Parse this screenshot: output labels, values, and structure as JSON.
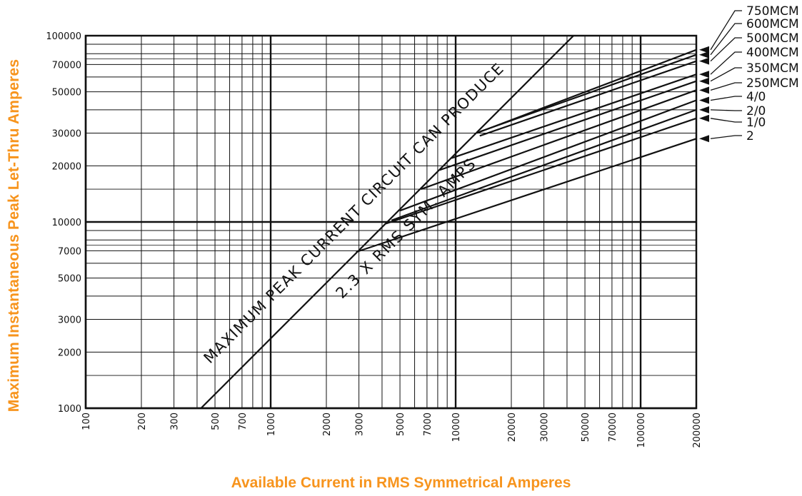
{
  "chart_data": {
    "type": "line",
    "xscale": "log",
    "yscale": "log",
    "xlim": [
      100,
      200000
    ],
    "ylim": [
      1000,
      100000
    ],
    "grid": true,
    "xlabel": "Available Current in RMS Symmetrical Amperes",
    "ylabel": "Maximum Instantaneous Peak Let-Thru Amperes",
    "x_ticks": [
      "100",
      "200",
      "300",
      "500",
      "700",
      "1000",
      "2000",
      "3000",
      "5000",
      "7000",
      "10000",
      "20000",
      "30000",
      "50000",
      "70000",
      "100000",
      "200000"
    ],
    "y_ticks": [
      "1000",
      "2000",
      "3000",
      "5000",
      "7000",
      "10000",
      "20000",
      "30000",
      "50000",
      "70000",
      "100000"
    ],
    "reference_line": {
      "label_line1": "MAXIMUM PEAK CURRENT CIRCUIT CAN PRODUCE",
      "label_line2": "2.3 X RMS SYM. AMPS",
      "x": [
        420,
        46000
      ],
      "y": [
        1000,
        106000
      ]
    },
    "series": [
      {
        "name": "750MCM",
        "x": [
          13000,
          200000
        ],
        "y": [
          30000,
          84000
        ]
      },
      {
        "name": "600MCM",
        "x": [
          13500,
          200000
        ],
        "y": [
          30500,
          79000
        ]
      },
      {
        "name": "500MCM",
        "x": [
          13500,
          200000
        ],
        "y": [
          29000,
          73000
        ]
      },
      {
        "name": "400MCM",
        "x": [
          9500,
          200000
        ],
        "y": [
          22000,
          62000
        ]
      },
      {
        "name": "350MCM",
        "x": [
          8200,
          200000
        ],
        "y": [
          19000,
          57000
        ]
      },
      {
        "name": "250MCM",
        "x": [
          6500,
          200000
        ],
        "y": [
          15000,
          51000
        ]
      },
      {
        "name": "4/0",
        "x": [
          5000,
          200000
        ],
        "y": [
          11500,
          45000
        ]
      },
      {
        "name": "2/0",
        "x": [
          4500,
          200000
        ],
        "y": [
          10200,
          40000
        ]
      },
      {
        "name": "1/0",
        "x": [
          4200,
          200000
        ],
        "y": [
          9800,
          36000
        ]
      },
      {
        "name": "2",
        "x": [
          2900,
          200000
        ],
        "y": [
          6900,
          28000
        ]
      }
    ]
  }
}
